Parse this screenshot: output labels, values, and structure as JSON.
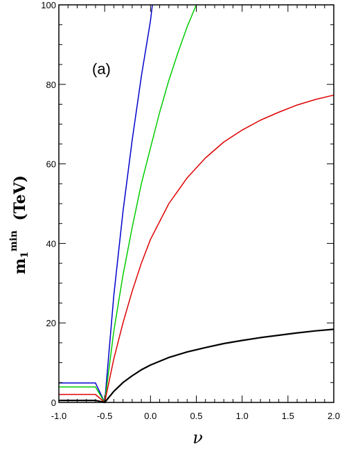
{
  "chart_data": {
    "type": "line",
    "panel_label": "(a)",
    "xlabel": "ν",
    "ylabel": {
      "main": "m",
      "sub": "1",
      "sup": "min",
      "unit": "(TeV)"
    },
    "xlim": [
      -1.0,
      2.0
    ],
    "ylim": [
      0,
      100
    ],
    "x_ticks": [
      "-1.0",
      "-0.5",
      "0.0",
      "0.5",
      "1.0",
      "1.5",
      "2.0"
    ],
    "x_tick_values": [
      -1.0,
      -0.5,
      0.0,
      0.5,
      1.0,
      1.5,
      2.0
    ],
    "y_ticks": [
      "0",
      "20",
      "40",
      "60",
      "80",
      "100"
    ],
    "y_tick_values": [
      0,
      20,
      40,
      60,
      80,
      100
    ],
    "grid": false,
    "series": [
      {
        "color": "#0000cc",
        "x": [
          -1.0,
          -0.6,
          -0.6,
          -0.5,
          -0.4,
          -0.3,
          -0.2,
          -0.1,
          0.0,
          0.02
        ],
        "y": [
          4.9,
          4.9,
          4.9,
          0.0,
          27.0,
          48.0,
          66.0,
          82.0,
          96.0,
          100.0
        ]
      },
      {
        "color": "#00cc00",
        "x": [
          -1.0,
          -0.6,
          -0.6,
          -0.5,
          -0.4,
          -0.3,
          -0.2,
          -0.1,
          0.0,
          0.1,
          0.2,
          0.3,
          0.4,
          0.5
        ],
        "y": [
          3.9,
          3.9,
          3.9,
          0.0,
          18.0,
          32.0,
          44.0,
          55.0,
          64.0,
          73.0,
          81.0,
          88.0,
          94.5,
          100.0
        ]
      },
      {
        "color": "#dd0000",
        "x": [
          -1.0,
          -0.6,
          -0.6,
          -0.5,
          -0.4,
          -0.3,
          -0.2,
          -0.1,
          0.0,
          0.2,
          0.4,
          0.6,
          0.8,
          1.0,
          1.2,
          1.4,
          1.6,
          1.8,
          2.0
        ],
        "y": [
          2.0,
          2.0,
          2.0,
          0.0,
          11.0,
          20.0,
          28.0,
          35.0,
          41.0,
          50.0,
          56.5,
          61.5,
          65.5,
          68.5,
          71.0,
          73.0,
          74.8,
          76.2,
          77.3
        ]
      },
      {
        "color": "#000000",
        "x": [
          -1.0,
          -0.6,
          -0.6,
          -0.5,
          -0.4,
          -0.3,
          -0.2,
          -0.1,
          0.0,
          0.2,
          0.4,
          0.6,
          0.8,
          1.0,
          1.2,
          1.4,
          1.6,
          1.8,
          2.0
        ],
        "y": [
          0.5,
          0.5,
          0.5,
          0.0,
          2.8,
          5.0,
          6.7,
          8.2,
          9.4,
          11.3,
          12.7,
          13.8,
          14.8,
          15.6,
          16.3,
          16.9,
          17.5,
          18.0,
          18.4
        ]
      }
    ]
  }
}
